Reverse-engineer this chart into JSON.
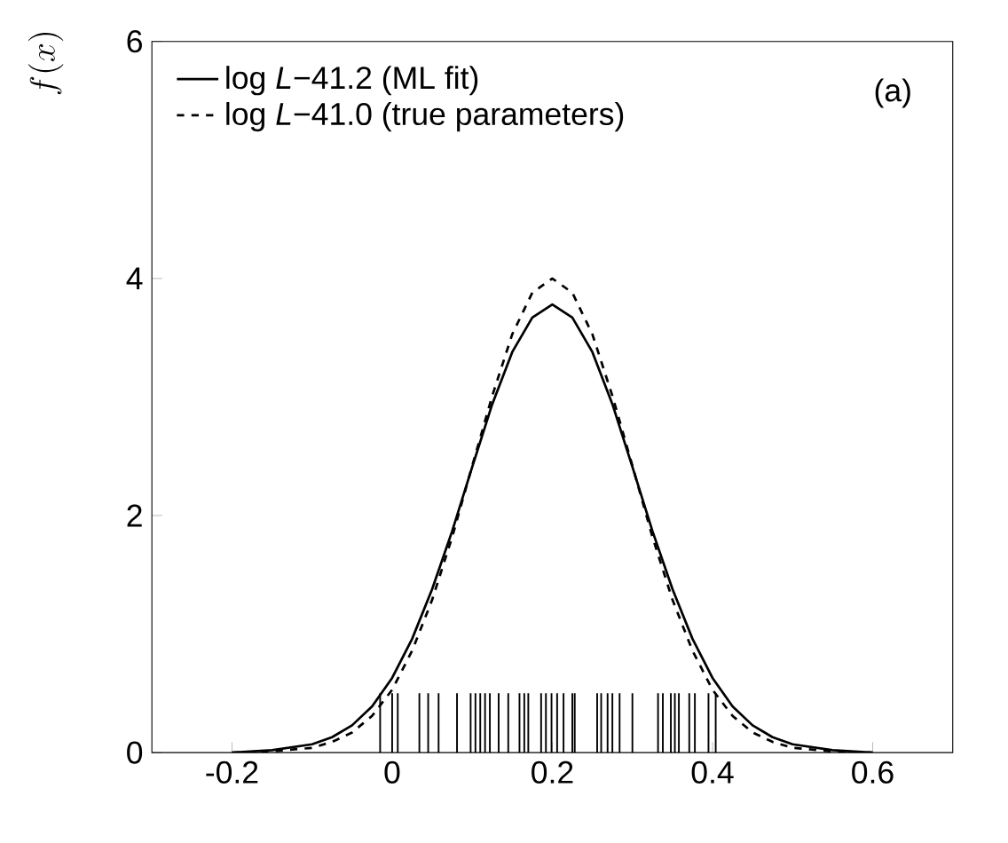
{
  "chart_data": {
    "type": "line",
    "ylabel": "f(x)",
    "annotations": [
      "(a)"
    ],
    "legend": "top left",
    "xlim": [
      -0.3,
      0.7
    ],
    "ylim": [
      0,
      6
    ],
    "xticks": [
      -0.2,
      0,
      0.2,
      0.4,
      0.6
    ],
    "yticks": [
      0,
      2,
      4,
      6
    ],
    "series": [
      {
        "name": "log *L*−41.2 (ML fit)",
        "color": "#000000",
        "line_style": "solid",
        "x": [
          -0.2,
          -0.15,
          -0.1,
          -0.075,
          -0.05,
          -0.025,
          0,
          0.025,
          0.05,
          0.075,
          0.1,
          0.125,
          0.15,
          0.175,
          0.2,
          0.225,
          0.25,
          0.275,
          0.3,
          0.325,
          0.35,
          0.375,
          0.4,
          0.425,
          0.45,
          0.475,
          0.5,
          0.55,
          0.6
        ],
        "values": [
          0.0,
          0.02,
          0.07,
          0.13,
          0.23,
          0.39,
          0.63,
          0.96,
          1.38,
          1.87,
          2.41,
          2.94,
          3.38,
          3.67,
          3.78,
          3.67,
          3.38,
          2.94,
          2.41,
          1.87,
          1.38,
          0.96,
          0.63,
          0.39,
          0.23,
          0.13,
          0.07,
          0.02,
          0.0
        ]
      },
      {
        "name": "log *L*−41.0 (true parameters)",
        "color": "#000000",
        "line_style": "dashed",
        "x": [
          -0.2,
          -0.15,
          -0.1,
          -0.075,
          -0.05,
          -0.025,
          0,
          0.025,
          0.05,
          0.075,
          0.1,
          0.125,
          0.15,
          0.175,
          0.2,
          0.225,
          0.25,
          0.275,
          0.3,
          0.325,
          0.35,
          0.375,
          0.4,
          0.425,
          0.45,
          0.475,
          0.5,
          0.55,
          0.6
        ],
        "values": [
          0.0,
          0.01,
          0.04,
          0.09,
          0.17,
          0.31,
          0.53,
          0.86,
          1.29,
          1.82,
          2.42,
          3.01,
          3.53,
          3.88,
          4.0,
          3.88,
          3.53,
          3.01,
          2.42,
          1.82,
          1.29,
          0.86,
          0.53,
          0.31,
          0.17,
          0.09,
          0.04,
          0.01,
          0.0
        ]
      },
      {
        "type": "bar",
        "color": "#000000",
        "x": [
          -0.015,
          0.0,
          0.007,
          0.034,
          0.045,
          0.058,
          0.081,
          0.098,
          0.104,
          0.11,
          0.116,
          0.122,
          0.133,
          0.145,
          0.159,
          0.165,
          0.17,
          0.186,
          0.192,
          0.199,
          0.206,
          0.214,
          0.225,
          0.228,
          0.256,
          0.261,
          0.269,
          0.275,
          0.284,
          0.3,
          0.332,
          0.338,
          0.348,
          0.353,
          0.358,
          0.371,
          0.378,
          0.395,
          0.404
        ],
        "values": [
          0.5,
          0.5,
          0.5,
          0.5,
          0.5,
          0.5,
          0.5,
          0.5,
          0.5,
          0.5,
          0.5,
          0.5,
          0.5,
          0.5,
          0.5,
          0.5,
          0.5,
          0.5,
          0.5,
          0.5,
          0.5,
          0.5,
          0.5,
          0.5,
          0.5,
          0.5,
          0.5,
          0.5,
          0.5,
          0.5,
          0.5,
          0.5,
          0.5,
          0.5,
          0.5,
          0.5,
          0.5,
          0.5,
          0.5
        ]
      }
    ]
  }
}
